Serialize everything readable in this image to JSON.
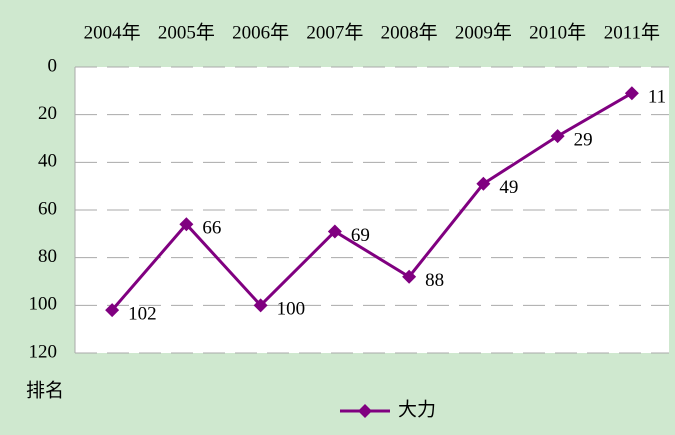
{
  "chart_data": {
    "type": "line",
    "categories": [
      "2004年",
      "2005年",
      "2006年",
      "2007年",
      "2008年",
      "2009年",
      "2010年",
      "2011年"
    ],
    "series": [
      {
        "name": "大力",
        "color": "#800080",
        "values": [
          102,
          66,
          100,
          69,
          88,
          49,
          29,
          11
        ]
      }
    ],
    "ylim": [
      0,
      120
    ],
    "yticks": [
      0,
      20,
      40,
      60,
      80,
      100,
      120
    ],
    "y_inverted": true,
    "ylabel": "排名",
    "grid": true,
    "legend": "bottom"
  }
}
